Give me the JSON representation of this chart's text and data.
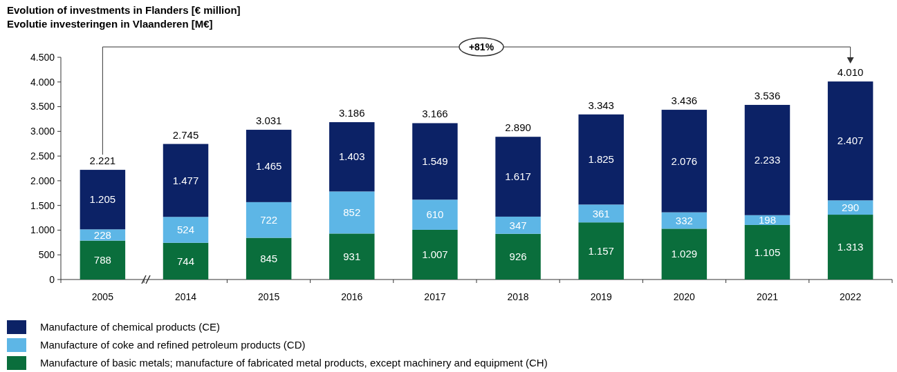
{
  "chart_data": {
    "type": "bar",
    "stacked": true,
    "title": "Evolution of investments in Flanders [€ million]",
    "subtitle": "Evolutie investeringen in Vlaanderen [M€]",
    "categories": [
      "2005",
      "2014",
      "2015",
      "2016",
      "2017",
      "2018",
      "2019",
      "2020",
      "2021",
      "2022"
    ],
    "series": [
      {
        "name": "Manufacture of basic metals; manufacture of fabricated metal products, except machinery and equipment (CH)",
        "color": "#0a6e3c",
        "values": [
          788,
          744,
          845,
          931,
          1007,
          926,
          1157,
          1029,
          1105,
          1313
        ],
        "value_labels": [
          "788",
          "744",
          "845",
          "931",
          "1.007",
          "926",
          "1.157",
          "1.029",
          "1.105",
          "1.313"
        ]
      },
      {
        "name": "Manufacture of coke and refined petroleum products (CD)",
        "color": "#5db6e6",
        "values": [
          228,
          524,
          722,
          852,
          610,
          347,
          361,
          332,
          198,
          290
        ],
        "value_labels": [
          "228",
          "524",
          "722",
          "852",
          "610",
          "347",
          "361",
          "332",
          "198",
          "290"
        ]
      },
      {
        "name": "Manufacture of chemical products (CE)",
        "color": "#0c2266",
        "values": [
          1205,
          1477,
          1465,
          1403,
          1549,
          1617,
          1825,
          2076,
          2233,
          2407
        ],
        "value_labels": [
          "1.205",
          "1.477",
          "1.465",
          "1.403",
          "1.549",
          "1.617",
          "1.825",
          "2.076",
          "2.233",
          "2.407"
        ]
      }
    ],
    "totals": [
      "2.221",
      "2.745",
      "3.031",
      "3.186",
      "3.166",
      "2.890",
      "3.343",
      "3.436",
      "3.536",
      "4.010"
    ],
    "ylim": [
      0,
      4500
    ],
    "yticks": [
      {
        "value": 0,
        "label": "0"
      },
      {
        "value": 500,
        "label": "500"
      },
      {
        "value": 1000,
        "label": "1.000"
      },
      {
        "value": 1500,
        "label": "1.500"
      },
      {
        "value": 2000,
        "label": "2.000"
      },
      {
        "value": 2500,
        "label": "2.500"
      },
      {
        "value": 3000,
        "label": "3.000"
      },
      {
        "value": 3500,
        "label": "3.500"
      },
      {
        "value": 4000,
        "label": "4.000"
      },
      {
        "value": 4500,
        "label": "4.500"
      }
    ],
    "annotations": [
      "+81%"
    ],
    "grid": false,
    "legend": "bottom"
  }
}
